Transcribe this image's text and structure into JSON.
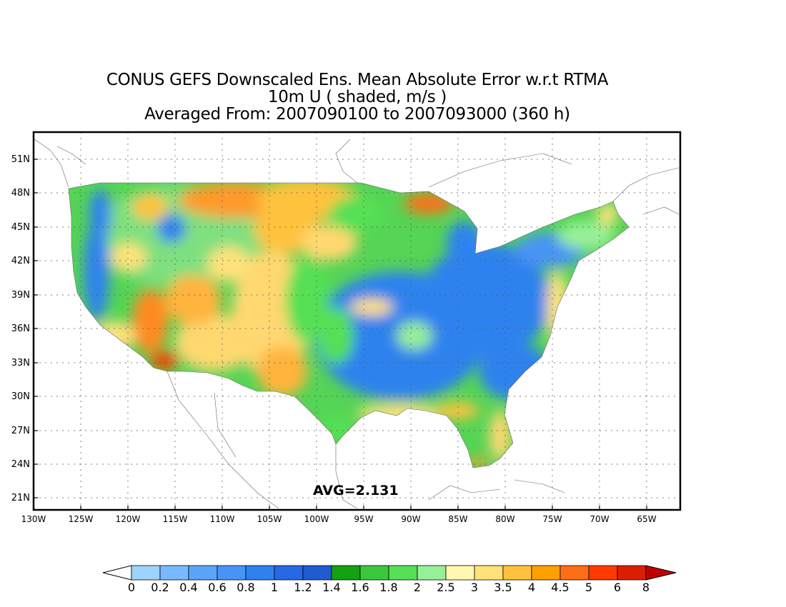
{
  "title": {
    "line1": "CONUS GEFS Downscaled Ens. Mean Absolute Error w.r.t RTMA",
    "line2": "10m U ( shaded, m/s )",
    "line3": "Averaged From: 2007090100 to 2007093000 (360 h)"
  },
  "map": {
    "lat_labels": [
      "51N",
      "48N",
      "45N",
      "42N",
      "39N",
      "36N",
      "33N",
      "30N",
      "27N",
      "24N",
      "21N"
    ],
    "lon_labels": [
      "130W",
      "125W",
      "120W",
      "115W",
      "110W",
      "105W",
      "100W",
      "95W",
      "90W",
      "85W",
      "80W",
      "75W",
      "70W",
      "65W"
    ],
    "avg_text": "AVG=2.131",
    "grid": true
  },
  "colorbar": {
    "labels": [
      "0",
      "0.2",
      "0.4",
      "0.6",
      "0.8",
      "1",
      "1.2",
      "1.4",
      "1.6",
      "1.8",
      "2",
      "2.5",
      "3",
      "3.5",
      "4",
      "4.5",
      "5",
      "6",
      "8"
    ],
    "colors": [
      "#9fd3ff",
      "#79b9ff",
      "#5aa5fa",
      "#4694f5",
      "#2e82ee",
      "#2569e6",
      "#1e5ccf",
      "#12a212",
      "#3cc83c",
      "#55e055",
      "#97f097",
      "#fff8b0",
      "#ffe27a",
      "#ffc23c",
      "#ffa000",
      "#ff6e14",
      "#ff3a00",
      "#dc1e00"
    ],
    "under_color": "#ffffff",
    "over_color": "#c00000"
  }
}
